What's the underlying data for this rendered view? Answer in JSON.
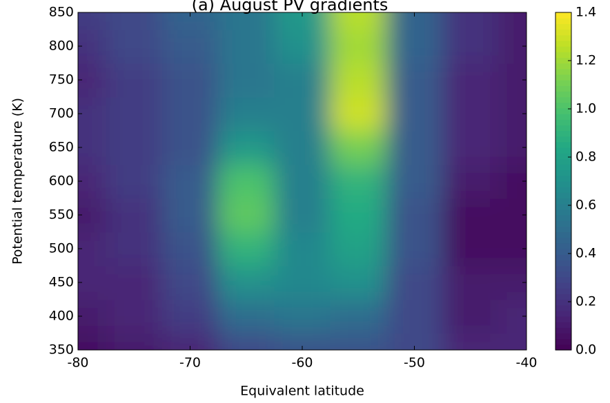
{
  "chart_data": {
    "type": "contour",
    "title": "(a) August PV gradients",
    "x_label": "Equivalent latitude",
    "y_label": "Potential temperature (K)",
    "x": [
      -80,
      -75,
      -70,
      -65,
      -60,
      -55,
      -50,
      -45,
      -40
    ],
    "y": [
      350,
      400,
      450,
      500,
      550,
      600,
      650,
      700,
      750,
      800,
      850
    ],
    "z": [
      [
        0.05,
        0.1,
        0.15,
        0.3,
        0.35,
        0.35,
        0.3,
        0.15,
        0.15
      ],
      [
        0.1,
        0.15,
        0.25,
        0.5,
        0.55,
        0.5,
        0.3,
        0.1,
        0.15
      ],
      [
        0.15,
        0.15,
        0.3,
        0.7,
        0.65,
        0.7,
        0.3,
        0.1,
        0.1
      ],
      [
        0.15,
        0.2,
        0.35,
        0.9,
        0.65,
        0.8,
        0.35,
        0.05,
        0.05
      ],
      [
        0.1,
        0.2,
        0.4,
        1.05,
        0.6,
        0.85,
        0.35,
        0.05,
        0.05
      ],
      [
        0.15,
        0.25,
        0.4,
        1.0,
        0.6,
        0.9,
        0.4,
        0.1,
        0.05
      ],
      [
        0.2,
        0.25,
        0.35,
        0.75,
        0.6,
        1.1,
        0.4,
        0.15,
        0.1
      ],
      [
        0.2,
        0.25,
        0.35,
        0.6,
        0.6,
        1.3,
        0.4,
        0.15,
        0.1
      ],
      [
        0.15,
        0.25,
        0.35,
        0.55,
        0.6,
        1.25,
        0.4,
        0.15,
        0.1
      ],
      [
        0.2,
        0.3,
        0.4,
        0.55,
        0.7,
        1.2,
        0.45,
        0.2,
        0.1
      ],
      [
        0.25,
        0.3,
        0.45,
        0.55,
        0.75,
        1.25,
        0.45,
        0.2,
        0.1
      ]
    ],
    "colormap": "viridis",
    "xlim": [
      -80,
      -40
    ],
    "xticks": [
      -80,
      -70,
      -60,
      -50,
      -40
    ],
    "ylim": [
      350,
      850
    ],
    "yticks": [
      350,
      400,
      450,
      500,
      550,
      600,
      650,
      700,
      750,
      800,
      850
    ],
    "zlim": [
      0,
      1.4
    ],
    "zticks": [
      {
        "value": 0,
        "label": "0.0"
      },
      0.2,
      0.4,
      0.6,
      0.8,
      {
        "value": 1,
        "label": "1.0"
      },
      1.2,
      1.4
    ]
  }
}
